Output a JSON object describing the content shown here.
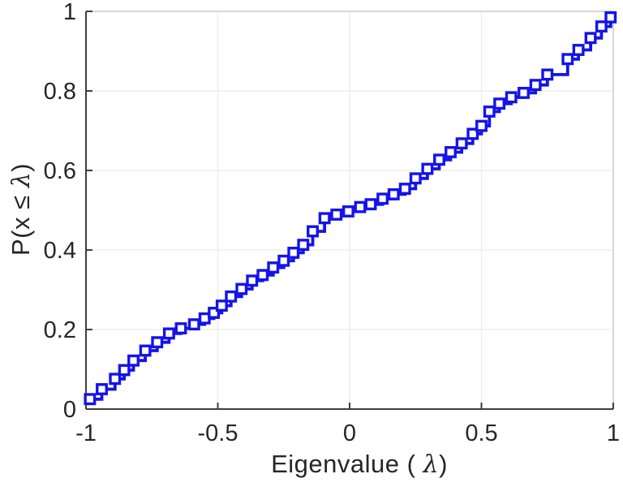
{
  "figure": {
    "background": "#ffffff",
    "axis_text_color": "#262626",
    "axis_line_color": "#3f3f3f",
    "grid_color": "#ebebeb",
    "box_color": "#c9c9c9"
  },
  "chart_data": {
    "type": "line",
    "style": "stairs",
    "title": "",
    "xlabel": {
      "prefix": "Eigenvalue ( ",
      "symbol": "λ",
      "suffix": ")"
    },
    "ylabel": {
      "prefix": "P(x ≤ ",
      "symbol": "λ",
      "suffix": ")"
    },
    "xlim": [
      -1,
      1
    ],
    "ylim": [
      0,
      1
    ],
    "xticks": {
      "values": [
        -1,
        -0.5,
        0,
        0.5,
        1
      ],
      "labels": [
        "-1",
        "-0.5",
        "0",
        "0.5",
        "1"
      ]
    },
    "yticks": {
      "values": [
        0,
        0.2,
        0.4,
        0.6,
        0.8,
        1
      ],
      "labels": [
        "0",
        "0.2",
        "0.4",
        "0.6",
        "0.8",
        "1"
      ]
    },
    "grid": "on",
    "box": "on",
    "legend": "none",
    "series": [
      {
        "name": "eigenvalue-empirical-cdf",
        "color": "#1414e8",
        "marker": "hollow-square",
        "points": [
          [
            -0.985,
            0.025
          ],
          [
            -0.94,
            0.05
          ],
          [
            -0.89,
            0.076
          ],
          [
            -0.855,
            0.098
          ],
          [
            -0.82,
            0.122
          ],
          [
            -0.775,
            0.147
          ],
          [
            -0.73,
            0.168
          ],
          [
            -0.685,
            0.19
          ],
          [
            -0.64,
            0.203
          ],
          [
            -0.59,
            0.213
          ],
          [
            -0.55,
            0.228
          ],
          [
            -0.515,
            0.242
          ],
          [
            -0.485,
            0.26
          ],
          [
            -0.45,
            0.283
          ],
          [
            -0.41,
            0.302
          ],
          [
            -0.37,
            0.323
          ],
          [
            -0.33,
            0.337
          ],
          [
            -0.29,
            0.356
          ],
          [
            -0.25,
            0.373
          ],
          [
            -0.213,
            0.393
          ],
          [
            -0.176,
            0.413
          ],
          [
            -0.14,
            0.447
          ],
          [
            -0.095,
            0.48
          ],
          [
            -0.05,
            0.489
          ],
          [
            -0.005,
            0.497
          ],
          [
            0.04,
            0.508
          ],
          [
            0.08,
            0.515
          ],
          [
            0.125,
            0.529
          ],
          [
            0.167,
            0.54
          ],
          [
            0.21,
            0.554
          ],
          [
            0.25,
            0.58
          ],
          [
            0.295,
            0.604
          ],
          [
            0.34,
            0.627
          ],
          [
            0.383,
            0.646
          ],
          [
            0.425,
            0.668
          ],
          [
            0.467,
            0.692
          ],
          [
            0.5,
            0.712
          ],
          [
            0.53,
            0.748
          ],
          [
            0.568,
            0.768
          ],
          [
            0.613,
            0.784
          ],
          [
            0.66,
            0.795
          ],
          [
            0.705,
            0.815
          ],
          [
            0.75,
            0.841
          ],
          [
            0.827,
            0.88
          ],
          [
            0.868,
            0.903
          ],
          [
            0.914,
            0.933
          ],
          [
            0.955,
            0.962
          ],
          [
            0.99,
            0.985
          ]
        ]
      }
    ]
  }
}
